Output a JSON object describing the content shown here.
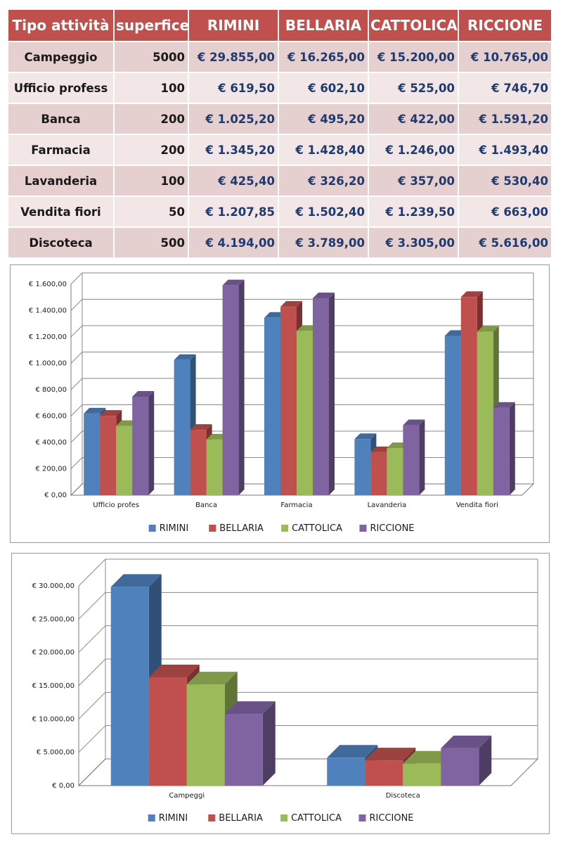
{
  "table": {
    "headers": [
      "Tipo attività",
      "superfice",
      "RIMINI",
      "BELLARIA",
      "CATTOLICA",
      "RICCIONE"
    ],
    "rows": [
      {
        "tipo": "Campeggio",
        "superfice": "5000",
        "rimini": "€ 29.855,00",
        "bellaria": "€ 16.265,00",
        "cattolica": "€ 15.200,00",
        "riccione": "€ 10.765,00"
      },
      {
        "tipo": "Ufficio profess",
        "superfice": "100",
        "rimini": "€ 619,50",
        "bellaria": "€ 602,10",
        "cattolica": "€ 525,00",
        "riccione": "€ 746,70"
      },
      {
        "tipo": "Banca",
        "superfice": "200",
        "rimini": "€ 1.025,20",
        "bellaria": "€ 495,20",
        "cattolica": "€ 422,00",
        "riccione": "€ 1.591,20"
      },
      {
        "tipo": "Farmacia",
        "superfice": "200",
        "rimini": "€ 1.345,20",
        "bellaria": "€ 1.428,40",
        "cattolica": "€ 1.246,00",
        "riccione": "€ 1.493,40"
      },
      {
        "tipo": "Lavanderia",
        "superfice": "100",
        "rimini": "€ 425,40",
        "bellaria": "€ 326,20",
        "cattolica": "€ 357,00",
        "riccione": "€ 530,40"
      },
      {
        "tipo": "Vendita fiori",
        "superfice": "50",
        "rimini": "€ 1.207,85",
        "bellaria": "€ 1.502,40",
        "cattolica": "€ 1.239,50",
        "riccione": "€ 663,00"
      },
      {
        "tipo": "Discoteca",
        "superfice": "500",
        "rimini": "€ 4.194,00",
        "bellaria": "€ 3.789,00",
        "cattolica": "€ 3.305,00",
        "riccione": "€ 5.616,00"
      }
    ]
  },
  "chart_data": [
    {
      "type": "bar",
      "style": "3d-clustered-column",
      "categories": [
        "Ufficio profes",
        "Banca",
        "Farmacia",
        "Lavanderia",
        "Vendita fiori"
      ],
      "series": [
        {
          "name": "RIMINI",
          "color": "#4f81bd",
          "values": [
            619.5,
            1025.2,
            1345.2,
            425.4,
            1207.85
          ]
        },
        {
          "name": "BELLARIA",
          "color": "#c0504d",
          "values": [
            602.1,
            495.2,
            1428.4,
            326.2,
            1502.4
          ]
        },
        {
          "name": "CATTOLICA",
          "color": "#9bbb59",
          "values": [
            525.0,
            422.0,
            1246.0,
            357.0,
            1239.5
          ]
        },
        {
          "name": "RICCIONE",
          "color": "#8064a2",
          "values": [
            746.7,
            1591.2,
            1493.4,
            530.4,
            663.0
          ]
        }
      ],
      "ylim": [
        0,
        1600
      ],
      "yticks": [
        0,
        200,
        400,
        600,
        800,
        1000,
        1200,
        1400,
        1600
      ],
      "ytick_labels": [
        "€ 0,00",
        "€ 200,00",
        "€ 400,00",
        "€ 600,00",
        "€ 800,00",
        "€ 1.000,00",
        "€ 1.200,00",
        "€ 1.400,00",
        "€ 1.600,00"
      ],
      "grid": true,
      "legend": "bottom"
    },
    {
      "type": "bar",
      "style": "3d-clustered-column",
      "categories": [
        "Campeggi",
        "Discoteca"
      ],
      "series": [
        {
          "name": "RIMINI",
          "color": "#4f81bd",
          "values": [
            29855,
            4194
          ]
        },
        {
          "name": "BELLARIA",
          "color": "#c0504d",
          "values": [
            16265,
            3789
          ]
        },
        {
          "name": "CATTOLICA",
          "color": "#9bbb59",
          "values": [
            15200,
            3305
          ]
        },
        {
          "name": "RICCIONE",
          "color": "#8064a2",
          "values": [
            10765,
            5616
          ]
        }
      ],
      "ylim": [
        0,
        30000
      ],
      "yticks": [
        0,
        5000,
        10000,
        15000,
        20000,
        25000,
        30000
      ],
      "ytick_labels": [
        "€ 0,00",
        "€ 5.000,00",
        "€ 10.000,00",
        "€ 15.000,00",
        "€ 20.000,00",
        "€ 25.000,00",
        "€ 30.000,00"
      ],
      "grid": true,
      "legend": "bottom"
    }
  ]
}
